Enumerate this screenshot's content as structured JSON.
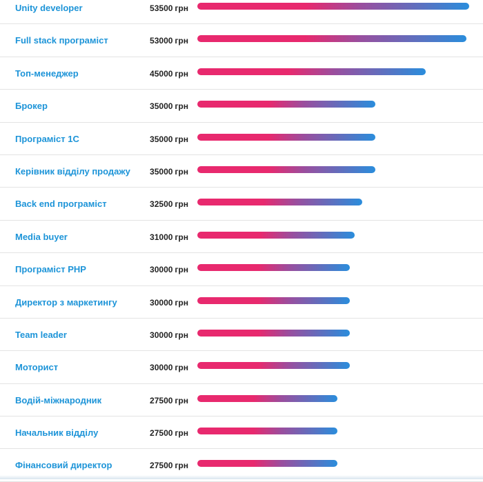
{
  "chart_data": {
    "type": "bar",
    "orientation": "horizontal",
    "unit": "грн",
    "colors": {
      "label": "#1d94d8",
      "bar_start": "#e8296e",
      "bar_end": "#2a8ddc"
    },
    "rows": [
      {
        "label": "Unity developer",
        "value": 53500,
        "value_text": "53500"
      },
      {
        "label": "Full stack програміст",
        "value": 53000,
        "value_text": "53000"
      },
      {
        "label": "Топ-менеджер",
        "value": 45000,
        "value_text": "45000"
      },
      {
        "label": "Брокер",
        "value": 35000,
        "value_text": "35000"
      },
      {
        "label": "Програміст 1С",
        "value": 35000,
        "value_text": "35000"
      },
      {
        "label": "Керівник відділу продажу",
        "value": 35000,
        "value_text": "35000"
      },
      {
        "label": "Back end програміст",
        "value": 32500,
        "value_text": "32500"
      },
      {
        "label": "Media buyer",
        "value": 31000,
        "value_text": "31000"
      },
      {
        "label": "Програміст PHP",
        "value": 30000,
        "value_text": "30000"
      },
      {
        "label": "Директор з маркетингу",
        "value": 30000,
        "value_text": "30000"
      },
      {
        "label": "Team leader",
        "value": 30000,
        "value_text": "30000"
      },
      {
        "label": "Моторист",
        "value": 30000,
        "value_text": "30000"
      },
      {
        "label": "Водій-міжнародник",
        "value": 27500,
        "value_text": "27500"
      },
      {
        "label": "Начальник відділу",
        "value": 27500,
        "value_text": "27500"
      },
      {
        "label": "Фінансовий директор",
        "value": 27500,
        "value_text": "27500"
      }
    ]
  }
}
